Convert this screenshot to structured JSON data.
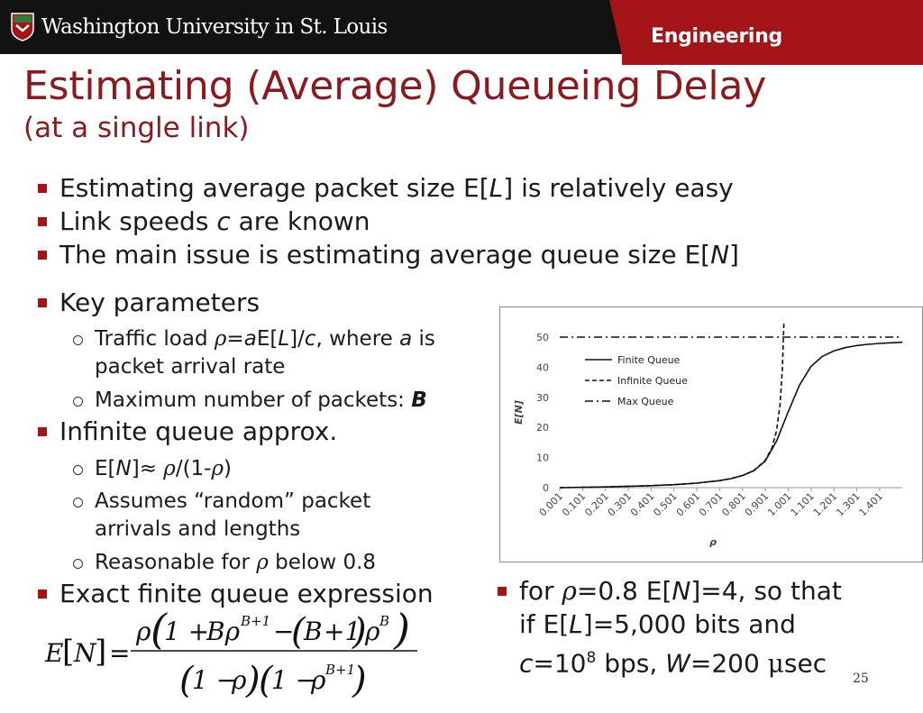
{
  "header": {
    "university": "Washington University in St. Louis",
    "school": "Engineering",
    "colors": {
      "bar": "#121212",
      "brand_red": "#a51417",
      "title_red": "#8b1a1e"
    }
  },
  "slide": {
    "title": "Estimating (Average) Queueing Delay",
    "subtitle": "(at a single link)",
    "page_number": "25"
  },
  "bullets": {
    "b1": {
      "pre": "Estimating average packet size E[",
      "var": "L",
      "post": "] is relatively easy"
    },
    "b2": {
      "pre": "Link speeds ",
      "var": "c",
      "post": " are known"
    },
    "b3": {
      "pre": "The main issue is estimating average queue size E[",
      "var": "N",
      "post": "]"
    },
    "b4": {
      "text": "Key parameters"
    },
    "b4s1": {
      "pre": "Traffic load ",
      "rho": "ρ",
      "eq": "=",
      "a": "a",
      "mid": "E[",
      "L": "L",
      "mid2": "]/",
      "c": "c",
      "post": ", where ",
      "a2": "a",
      "post2": " is",
      "line2": "packet arrival rate"
    },
    "b4s2": {
      "text": "Maximum number of packets: ",
      "bold": "B"
    },
    "b5": {
      "text": "Infinite queue approx."
    },
    "b5s1": {
      "pre": "E[",
      "N": "N",
      "mid": "]≈ ",
      "rho": "ρ",
      "post": "/(1-",
      "rho2": "ρ",
      "end": ")"
    },
    "b5s2": {
      "line1": "Assumes “random” packet",
      "line2": "arrivals and lengths"
    },
    "b5s3": {
      "pre": "Reasonable for ",
      "rho": "ρ",
      "post": " below 0.8"
    },
    "b6": {
      "text": "Exact finite queue expression"
    },
    "b7": {
      "l1_pre": "for ",
      "l1_rho": "ρ",
      "l1_post": "=0.8 E[",
      "l1_N": "N",
      "l1_end": "]=4, so that",
      "l2_pre": "if E[",
      "l2_L": "L",
      "l2_end": "]=5,000 bits and",
      "l3_c": "c",
      "l3_a": "=10",
      "l3_sup": "8",
      "l3_b": " bps, ",
      "l3_W": "W",
      "l3_c2": "=200 ",
      "l3_mu": "μ",
      "l3_end": "sec"
    }
  },
  "formula": {
    "lhs": "E[N] =",
    "numerator": "ρ(1 + Bρ^(B+1) − (B+1)ρ^B)",
    "denominator": "(1 − ρ)(1 − ρ^(B+1))"
  },
  "chart_data": {
    "type": "line",
    "xlabel": "ρ",
    "ylabel": "E[N]",
    "ylim": [
      0,
      50
    ],
    "yticks": [
      "0",
      "10",
      "20",
      "30",
      "40",
      "50"
    ],
    "xticks": [
      "0.001",
      "0.101",
      "0.201",
      "0.301",
      "0.401",
      "0.501",
      "0.601",
      "0.701",
      "0.801",
      "0.901",
      "1.001",
      "1.101",
      "1.201",
      "1.301",
      "1.401"
    ],
    "xlim": [
      0.001,
      1.5
    ],
    "legend_position": "top-left",
    "series": [
      {
        "name": "Finite Queue",
        "style": "solid",
        "x": [
          0.001,
          0.2,
          0.4,
          0.5,
          0.6,
          0.7,
          0.75,
          0.8,
          0.85,
          0.9,
          0.95,
          1.0,
          1.05,
          1.1,
          1.15,
          1.2,
          1.25,
          1.3,
          1.35,
          1.4,
          1.45,
          1.5
        ],
        "y": [
          0,
          0.25,
          0.67,
          1.0,
          1.5,
          2.33,
          3.0,
          4.0,
          5.6,
          8.8,
          15.5,
          25.0,
          34.0,
          40.2,
          43.6,
          45.4,
          46.5,
          47.2,
          47.6,
          47.9,
          48.1,
          48.3
        ]
      },
      {
        "name": "Infinite Queue",
        "style": "dashed",
        "x": [
          0.001,
          0.2,
          0.4,
          0.5,
          0.6,
          0.7,
          0.75,
          0.8,
          0.85,
          0.9,
          0.93,
          0.95,
          0.965,
          0.975,
          0.982
        ],
        "y": [
          0,
          0.25,
          0.67,
          1.0,
          1.5,
          2.33,
          3.0,
          4.0,
          5.67,
          9.0,
          13.3,
          19.0,
          27.6,
          39.0,
          54.6
        ]
      },
      {
        "name": "Max Queue",
        "style": "dashdot",
        "x": [
          0.001,
          1.5
        ],
        "y": [
          50,
          50
        ]
      }
    ]
  }
}
